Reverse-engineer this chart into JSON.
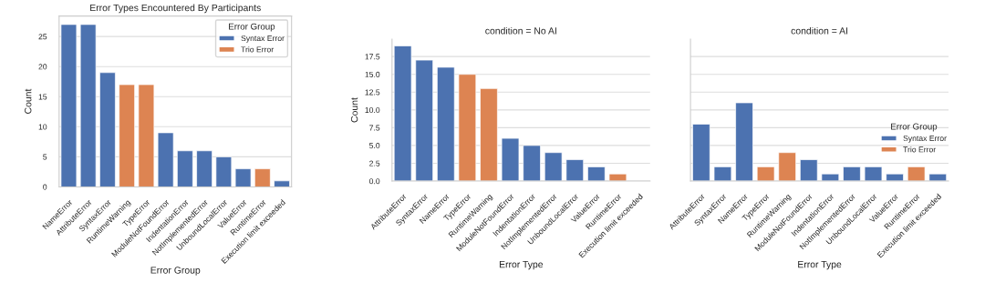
{
  "chart_data": [
    {
      "type": "bar",
      "title": "Error Types Encountered By Participants",
      "xlabel": "Error Group",
      "ylabel": "Count",
      "legend_title": "Error Group",
      "categories": [
        "NameError",
        "AttributeError",
        "SyntaxError",
        "RuntimeWarning",
        "TypeError",
        "ModuleNotFoundError",
        "IndentationError",
        "NotImplementedError",
        "UnboundLocalError",
        "ValueError",
        "RuntimeError",
        "Execution limit exceeded"
      ],
      "series": [
        {
          "name": "Syntax Error",
          "color": "#4c72b0",
          "values": [
            27,
            27,
            19,
            null,
            null,
            9,
            6,
            6,
            5,
            3,
            null,
            1
          ]
        },
        {
          "name": "Trio Error",
          "color": "#dd8452",
          "values": [
            null,
            null,
            null,
            17,
            17,
            null,
            null,
            null,
            null,
            null,
            3,
            null
          ]
        }
      ],
      "ylim": [
        0,
        28.4
      ],
      "yticks": [
        0,
        5,
        10,
        15,
        20,
        25
      ],
      "grid": "y",
      "legend": "top right"
    },
    {
      "type": "bar",
      "title": "condition = No AI",
      "xlabel": "Error Type",
      "ylabel": "Count",
      "categories": [
        "AttributeError",
        "SyntaxError",
        "NameError",
        "TypeError",
        "RuntimeWarning",
        "ModuleNotFoundError",
        "IndentationError",
        "NotImplementedError",
        "UnboundLocalError",
        "ValueError",
        "RuntimeError",
        "Execution limit exceeded"
      ],
      "series": [
        {
          "color": "#4c72b0",
          "values": [
            19,
            17,
            16,
            null,
            null,
            6,
            5,
            4,
            3,
            2,
            null,
            null
          ]
        },
        {
          "color": "#dd8452",
          "values": [
            null,
            null,
            null,
            15,
            13,
            null,
            null,
            null,
            null,
            null,
            1,
            null
          ]
        }
      ],
      "ylim": [
        0,
        19.95
      ],
      "yticks": [
        {
          "value": 0,
          "label": "0.0"
        },
        {
          "value": 2.5,
          "label": "2.5"
        },
        {
          "value": 5,
          "label": "5.0"
        },
        {
          "value": 7.5,
          "label": "7.5"
        },
        {
          "value": 10,
          "label": "10.0"
        },
        {
          "value": 12.5,
          "label": "12.5"
        },
        {
          "value": 15,
          "label": "15.0"
        },
        {
          "value": 17.5,
          "label": "17.5"
        }
      ],
      "grid": "y",
      "legend": false
    },
    {
      "type": "bar",
      "title": "condition = AI",
      "xlabel": "Error Type",
      "legend_title": "Error Group",
      "categories": [
        "AttributeError",
        "SyntaxError",
        "NameError",
        "TypeError",
        "RuntimeWarning",
        "ModuleNotFoundError",
        "IndentationError",
        "NotImplementedError",
        "UnboundLocalError",
        "ValueError",
        "RuntimeError",
        "Execution limit exceeded"
      ],
      "series": [
        {
          "name": "Syntax Error",
          "color": "#4c72b0",
          "values": [
            8,
            2,
            11,
            null,
            null,
            3,
            1,
            2,
            2,
            1,
            null,
            1
          ]
        },
        {
          "name": "Trio Error",
          "color": "#dd8452",
          "values": [
            null,
            null,
            null,
            2,
            4,
            null,
            null,
            null,
            null,
            null,
            2,
            null
          ]
        }
      ],
      "ylim": [
        0,
        19.95
      ],
      "yticks": [
        {
          "value": 0,
          "label": null
        },
        {
          "value": 2.5,
          "label": null
        },
        {
          "value": 5,
          "label": null
        },
        {
          "value": 7.5,
          "label": null
        },
        {
          "value": 10,
          "label": null
        },
        {
          "value": 12.5,
          "label": null
        },
        {
          "value": 15,
          "label": null
        },
        {
          "value": 17.5,
          "label": null
        }
      ],
      "grid": "y",
      "legend": "right",
      "tick_labels": "x"
    }
  ]
}
